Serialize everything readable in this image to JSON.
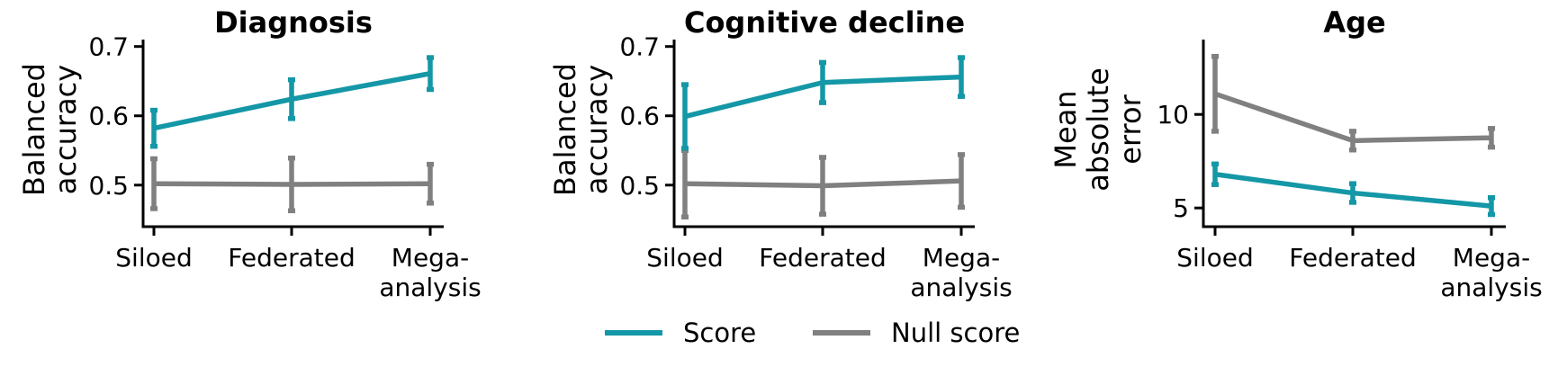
{
  "chart_data": [
    {
      "type": "line",
      "title": "Diagnosis",
      "ylabel": [
        "Balanced",
        "accuracy"
      ],
      "categories": [
        [
          "Siloed"
        ],
        [
          "Federated"
        ],
        [
          "Mega-",
          "analysis"
        ]
      ],
      "ylim": [
        0.44,
        0.71
      ],
      "yticks": [
        0.5,
        0.6,
        0.7
      ],
      "ytick_labels": [
        "0.5",
        "0.6",
        "0.7"
      ],
      "series": [
        {
          "name": "Score",
          "color": "#1497a6",
          "values": [
            0.582,
            0.624,
            0.661
          ],
          "err": [
            0.026,
            0.028,
            0.023
          ]
        },
        {
          "name": "Null score",
          "color": "#808080",
          "values": [
            0.502,
            0.501,
            0.502
          ],
          "err": [
            0.036,
            0.038,
            0.028
          ]
        }
      ]
    },
    {
      "type": "line",
      "title": "Cognitive decline",
      "ylabel": [
        "Balanced",
        "accuracy"
      ],
      "categories": [
        [
          "Siloed"
        ],
        [
          "Federated"
        ],
        [
          "Mega-",
          "analysis"
        ]
      ],
      "ylim": [
        0.44,
        0.71
      ],
      "yticks": [
        0.5,
        0.6,
        0.7
      ],
      "ytick_labels": [
        "0.5",
        "0.6",
        "0.7"
      ],
      "series": [
        {
          "name": "Score",
          "color": "#1497a6",
          "values": [
            0.599,
            0.648,
            0.656
          ],
          "err": [
            0.046,
            0.029,
            0.028
          ]
        },
        {
          "name": "Null score",
          "color": "#808080",
          "values": [
            0.502,
            0.499,
            0.506
          ],
          "err": [
            0.048,
            0.041,
            0.038
          ]
        }
      ]
    },
    {
      "type": "line",
      "title": "Age",
      "ylabel": [
        "Mean",
        "absolute",
        "error"
      ],
      "categories": [
        [
          "Siloed"
        ],
        [
          "Federated"
        ],
        [
          "Mega-",
          "analysis"
        ]
      ],
      "ylim": [
        4.0,
        14.0
      ],
      "yticks": [
        5,
        10
      ],
      "ytick_labels": [
        "5",
        "10"
      ],
      "series": [
        {
          "name": "Score",
          "color": "#1497a6",
          "values": [
            6.8,
            5.8,
            5.1
          ],
          "err": [
            0.55,
            0.5,
            0.45
          ]
        },
        {
          "name": "Null score",
          "color": "#808080",
          "values": [
            11.1,
            8.6,
            8.75
          ],
          "err": [
            2.0,
            0.5,
            0.5
          ]
        }
      ]
    }
  ],
  "legend": {
    "position": "bottom-center",
    "items": [
      {
        "label": "Score",
        "color": "#1497a6"
      },
      {
        "label": "Null score",
        "color": "#808080"
      }
    ]
  }
}
